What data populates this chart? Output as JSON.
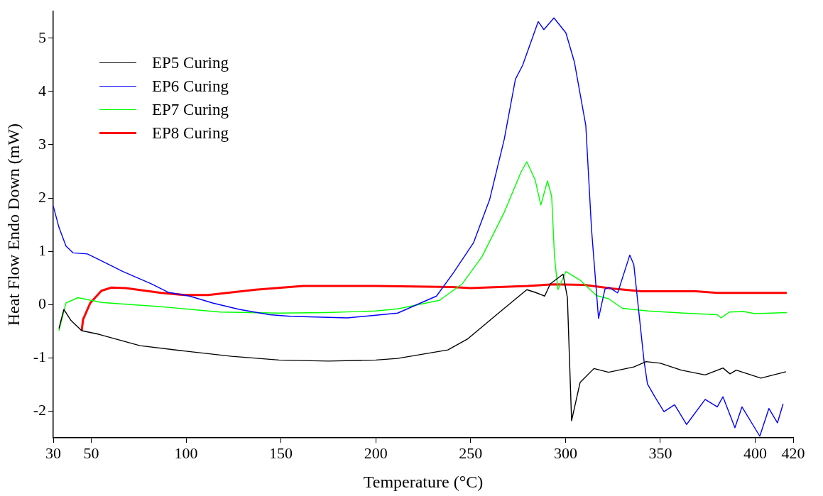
{
  "chart_data": {
    "type": "line",
    "xlabel": "Temperature (°C)",
    "ylabel": "Heat Flow Endo Down (mW)",
    "xlim": [
      30,
      420
    ],
    "xticks": [
      30,
      50,
      100,
      150,
      200,
      250,
      300,
      350,
      400,
      420
    ],
    "ylim": [
      -2.5,
      5.5
    ],
    "yticks": [
      -2,
      -1,
      0,
      1,
      2,
      3,
      4,
      5
    ],
    "grid": false,
    "legend": "top left",
    "marker": "none",
    "line_style": "solid",
    "series": [
      {
        "name": "EP5 Curing",
        "color": "#000000",
        "x": [
          33,
          35.6,
          39.4,
          45,
          54.3,
          65.5,
          75.7,
          99,
          124,
          149,
          175,
          200,
          211.5,
          238,
          248.6,
          263,
          279.6,
          284,
          289,
          292,
          298.7,
          301,
          303.2,
          307.7,
          315,
          322.7,
          336,
          342.5,
          350,
          361,
          373.6,
          383,
          386.7,
          390,
          403,
          416.2
        ],
        "values": [
          -0.45,
          -0.09,
          -0.3,
          -0.49,
          -0.56,
          -0.67,
          -0.77,
          -0.87,
          -0.97,
          -1.04,
          -1.06,
          -1.04,
          -1.01,
          -0.85,
          -0.64,
          -0.21,
          0.28,
          0.23,
          0.16,
          0.39,
          0.57,
          0.13,
          -2.18,
          -1.46,
          -1.2,
          -1.27,
          -1.17,
          -1.07,
          -1.1,
          -1.23,
          -1.32,
          -1.19,
          -1.3,
          -1.23,
          -1.38,
          -1.26
        ]
      },
      {
        "name": "EP6 Curing",
        "color": "#0000ff",
        "x": [
          30,
          33,
          36.7,
          40.5,
          48,
          54.3,
          66.7,
          81.6,
          90.6,
          101.8,
          114,
          128,
          144,
          155,
          185,
          200,
          211.5,
          232,
          241,
          251.5,
          260,
          267.7,
          273.6,
          277.4,
          285.6,
          288.6,
          293.9,
          300.2,
          304.7,
          310.7,
          313.7,
          317.4,
          320.8,
          323,
          327.5,
          333.9,
          336,
          341.4,
          343.2,
          347.4,
          351.9,
          357.5,
          363.8,
          373.6,
          380,
          383,
          389.3,
          393,
          402.4,
          407.2,
          411.7,
          414.7
        ],
        "values": [
          1.85,
          1.45,
          1.1,
          0.97,
          0.95,
          0.84,
          0.62,
          0.39,
          0.23,
          0.16,
          0.03,
          -0.09,
          -0.19,
          -0.22,
          -0.25,
          -0.2,
          -0.16,
          0.16,
          0.6,
          1.16,
          1.97,
          3.1,
          4.23,
          4.49,
          5.31,
          5.16,
          5.38,
          5.1,
          4.55,
          3.36,
          1.42,
          -0.26,
          0.29,
          0.32,
          0.22,
          0.93,
          0.75,
          -1.06,
          -1.49,
          -1.75,
          -2.01,
          -1.88,
          -2.25,
          -1.78,
          -1.92,
          -1.73,
          -2.31,
          -1.92,
          -2.47,
          -1.95,
          -2.22,
          -1.86
        ]
      },
      {
        "name": "EP7 Curing",
        "color": "#00ff00",
        "x": [
          33,
          36.7,
          43,
          55.4,
          86.9,
          118,
          149,
          174,
          200,
          211.5,
          233.6,
          245.6,
          256,
          267.7,
          276.6,
          279.6,
          284,
          287,
          290.5,
          292.7,
          294.2,
          296,
          300.2,
          308,
          316.3,
          322.7,
          330,
          343.6,
          362.3,
          380,
          382,
          386.3,
          393.8,
          399.8,
          416.6
        ],
        "values": [
          -0.49,
          0.03,
          0.13,
          0.04,
          -0.04,
          -0.14,
          -0.16,
          -0.15,
          -0.12,
          -0.08,
          0.08,
          0.39,
          0.9,
          1.73,
          2.49,
          2.68,
          2.34,
          1.87,
          2.32,
          2.03,
          0.9,
          0.28,
          0.62,
          0.45,
          0.17,
          0.11,
          -0.07,
          -0.12,
          -0.16,
          -0.19,
          -0.25,
          -0.14,
          -0.13,
          -0.17,
          -0.15
        ]
      },
      {
        "name": "EP8 Curing",
        "color": "#ff0000",
        "x": [
          45,
          45.7,
          49.5,
          55.4,
          60.7,
          68.2,
          86.9,
          99.2,
          111.6,
          136.7,
          161.7,
          200,
          240,
          250,
          280,
          293.8,
          310,
          325,
          339.9,
          368.7,
          380,
          416.6
        ],
        "values": [
          -0.49,
          -0.28,
          0.03,
          0.26,
          0.32,
          0.31,
          0.22,
          0.18,
          0.18,
          0.28,
          0.35,
          0.35,
          0.33,
          0.31,
          0.35,
          0.38,
          0.37,
          0.3,
          0.25,
          0.25,
          0.22,
          0.22
        ]
      }
    ]
  }
}
